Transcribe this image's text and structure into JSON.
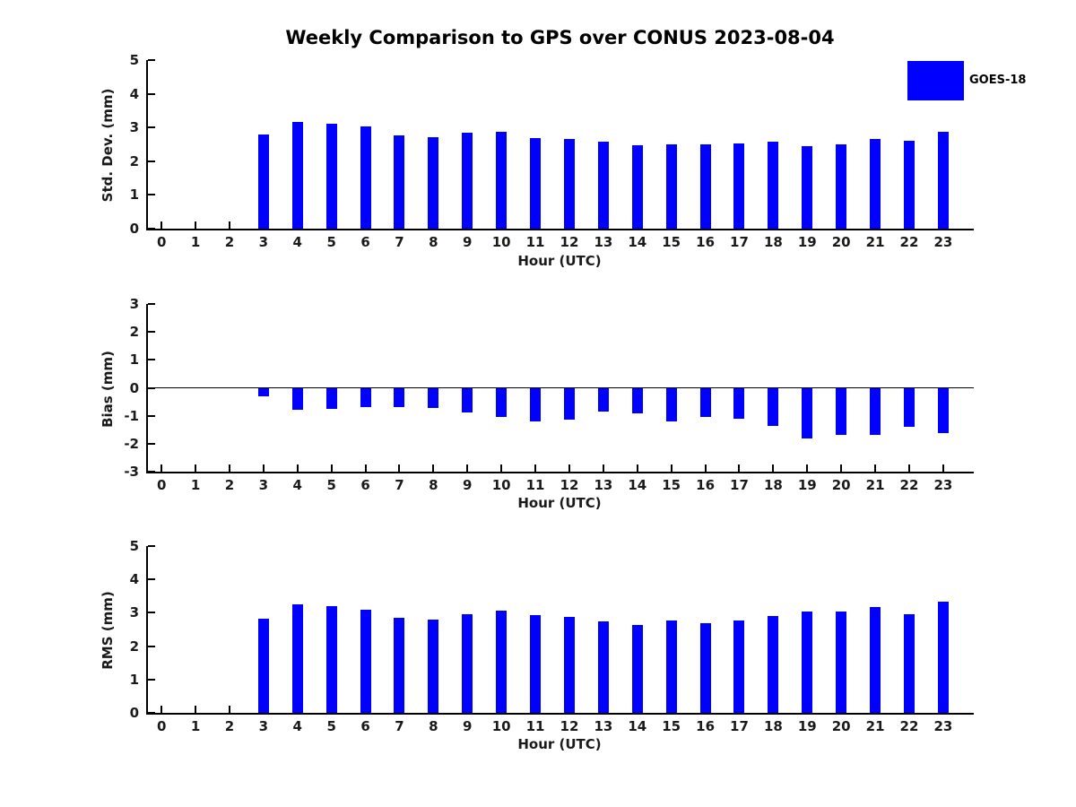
{
  "title": "Weekly Comparison to GPS over CONUS 2023-08-04",
  "legend": {
    "label": "GOES-18",
    "color": "#0000ff",
    "position": "top-right"
  },
  "axis_color": "#000000",
  "chart_data": [
    {
      "type": "bar",
      "series": "GOES-18",
      "title": "",
      "xlabel": "Hour (UTC)",
      "ylabel": "Std. Dev. (mm)",
      "ylim": [
        0,
        5
      ],
      "yticks": [
        0,
        1,
        2,
        3,
        4,
        5
      ],
      "grid": false,
      "categories": [
        0,
        1,
        2,
        3,
        4,
        5,
        6,
        7,
        8,
        9,
        10,
        11,
        12,
        13,
        14,
        15,
        16,
        17,
        18,
        19,
        20,
        21,
        22,
        23
      ],
      "values": [
        null,
        null,
        null,
        2.8,
        3.17,
        3.11,
        3.03,
        2.77,
        2.72,
        2.84,
        2.88,
        2.68,
        2.66,
        2.59,
        2.47,
        2.5,
        2.5,
        2.53,
        2.57,
        2.45,
        2.5,
        2.65,
        2.6,
        2.87
      ]
    },
    {
      "type": "bar",
      "series": "GOES-18",
      "title": "",
      "xlabel": "Hour (UTC)",
      "ylabel": "Bias (mm)",
      "ylim": [
        -3,
        3
      ],
      "yticks": [
        -3,
        -2,
        -1,
        0,
        1,
        2,
        3
      ],
      "zero_line": true,
      "grid": false,
      "categories": [
        0,
        1,
        2,
        3,
        4,
        5,
        6,
        7,
        8,
        9,
        10,
        11,
        12,
        13,
        14,
        15,
        16,
        17,
        18,
        19,
        20,
        21,
        22,
        23
      ],
      "values": [
        null,
        null,
        null,
        -0.32,
        -0.79,
        -0.74,
        -0.68,
        -0.7,
        -0.72,
        -0.88,
        -1.03,
        -1.21,
        -1.14,
        -0.84,
        -0.92,
        -1.21,
        -1.05,
        -1.12,
        -1.37,
        -1.81,
        -1.68,
        -1.7,
        -1.39,
        -1.62
      ]
    },
    {
      "type": "bar",
      "series": "GOES-18",
      "title": "",
      "xlabel": "Hour (UTC)",
      "ylabel": "RMS (mm)",
      "ylim": [
        0,
        5
      ],
      "yticks": [
        0,
        1,
        2,
        3,
        4,
        5
      ],
      "grid": false,
      "categories": [
        0,
        1,
        2,
        3,
        4,
        5,
        6,
        7,
        8,
        9,
        10,
        11,
        12,
        13,
        14,
        15,
        16,
        17,
        18,
        19,
        20,
        21,
        22,
        23
      ],
      "values": [
        null,
        null,
        null,
        2.81,
        3.25,
        3.2,
        3.1,
        2.86,
        2.8,
        2.96,
        3.06,
        2.94,
        2.88,
        2.73,
        2.64,
        2.77,
        2.69,
        2.77,
        2.9,
        3.04,
        3.05,
        3.18,
        2.96,
        3.32
      ]
    }
  ]
}
